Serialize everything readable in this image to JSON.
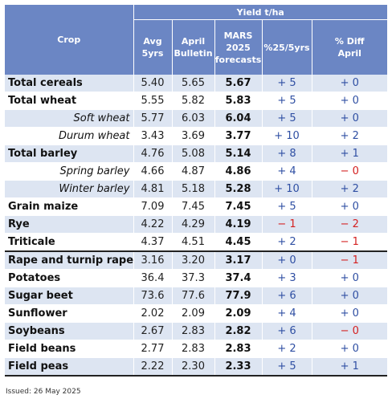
{
  "header": {
    "yield_group": "Yield t/ha",
    "crop": "Crop",
    "avg5": "Avg 5yrs",
    "april": "April\nBulletin",
    "mars": "MARS\n2025\nforecasts",
    "pct25": "%25/5yrs",
    "diff": "% Diff\nApril"
  },
  "rows": [
    {
      "crop": "Total cereals",
      "avg": "5.40",
      "apr": "5.65",
      "mars": "5.67",
      "pct": "+ 5",
      "diff": "+ 0",
      "style": "bold",
      "sep": false,
      "pct_sign": "pos",
      "diff_sign": "pos"
    },
    {
      "crop": "Total wheat",
      "avg": "5.55",
      "apr": "5.82",
      "mars": "5.83",
      "pct": "+ 5",
      "diff": "+ 0",
      "style": "bold",
      "sep": false,
      "pct_sign": "pos",
      "diff_sign": "pos"
    },
    {
      "crop": "Soft wheat",
      "avg": "5.77",
      "apr": "6.03",
      "mars": "6.04",
      "pct": "+ 5",
      "diff": "+ 0",
      "style": "sub",
      "sep": false,
      "pct_sign": "pos",
      "diff_sign": "pos"
    },
    {
      "crop": "Durum wheat",
      "avg": "3.43",
      "apr": "3.69",
      "mars": "3.77",
      "pct": "+ 10",
      "diff": "+ 2",
      "style": "sub",
      "sep": false,
      "pct_sign": "pos",
      "diff_sign": "pos"
    },
    {
      "crop": "Total barley",
      "avg": "4.76",
      "apr": "5.08",
      "mars": "5.14",
      "pct": "+ 8",
      "diff": "+ 1",
      "style": "bold",
      "sep": false,
      "pct_sign": "pos",
      "diff_sign": "pos"
    },
    {
      "crop": "Spring barley",
      "avg": "4.66",
      "apr": "4.87",
      "mars": "4.86",
      "pct": "+ 4",
      "diff": "− 0",
      "style": "sub",
      "sep": false,
      "pct_sign": "pos",
      "diff_sign": "neg"
    },
    {
      "crop": "Winter barley",
      "avg": "4.81",
      "apr": "5.18",
      "mars": "5.28",
      "pct": "+ 10",
      "diff": "+ 2",
      "style": "sub",
      "sep": false,
      "pct_sign": "pos",
      "diff_sign": "pos"
    },
    {
      "crop": "Grain maize",
      "avg": "7.09",
      "apr": "7.45",
      "mars": "7.45",
      "pct": "+ 5",
      "diff": "+ 0",
      "style": "bold",
      "sep": false,
      "pct_sign": "pos",
      "diff_sign": "pos"
    },
    {
      "crop": "Rye",
      "avg": "4.22",
      "apr": "4.29",
      "mars": "4.19",
      "pct": "− 1",
      "diff": "− 2",
      "style": "bold",
      "sep": false,
      "pct_sign": "neg",
      "diff_sign": "neg"
    },
    {
      "crop": "Triticale",
      "avg": "4.37",
      "apr": "4.51",
      "mars": "4.45",
      "pct": "+ 2",
      "diff": "− 1",
      "style": "bold",
      "sep": false,
      "pct_sign": "pos",
      "diff_sign": "neg"
    },
    {
      "crop": "Rape and turnip rape",
      "avg": "3.16",
      "apr": "3.20",
      "mars": "3.17",
      "pct": "+ 0",
      "diff": "− 1",
      "style": "bold",
      "sep": true,
      "pct_sign": "pos",
      "diff_sign": "neg"
    },
    {
      "crop": "Potatoes",
      "avg": "36.4",
      "apr": "37.3",
      "mars": "37.4",
      "pct": "+ 3",
      "diff": "+ 0",
      "style": "bold",
      "sep": false,
      "pct_sign": "pos",
      "diff_sign": "pos"
    },
    {
      "crop": "Sugar beet",
      "avg": "73.6",
      "apr": "77.6",
      "mars": "77.9",
      "pct": "+ 6",
      "diff": "+ 0",
      "style": "bold",
      "sep": false,
      "pct_sign": "pos",
      "diff_sign": "pos"
    },
    {
      "crop": "Sunflower",
      "avg": "2.02",
      "apr": "2.09",
      "mars": "2.09",
      "pct": "+ 4",
      "diff": "+ 0",
      "style": "bold",
      "sep": false,
      "pct_sign": "pos",
      "diff_sign": "pos"
    },
    {
      "crop": "Soybeans",
      "avg": "2.67",
      "apr": "2.83",
      "mars": "2.82",
      "pct": "+ 6",
      "diff": "− 0",
      "style": "bold",
      "sep": false,
      "pct_sign": "pos",
      "diff_sign": "neg"
    },
    {
      "crop": "Field beans",
      "avg": "2.77",
      "apr": "2.83",
      "mars": "2.83",
      "pct": "+ 2",
      "diff": "+ 0",
      "style": "bold",
      "sep": false,
      "pct_sign": "pos",
      "diff_sign": "pos"
    },
    {
      "crop": "Field peas",
      "avg": "2.22",
      "apr": "2.30",
      "mars": "2.33",
      "pct": "+ 5",
      "diff": "+ 1",
      "style": "bold",
      "sep": false,
      "pct_sign": "pos",
      "diff_sign": "pos"
    }
  ],
  "footer": {
    "issued": "Issued: 26 May 2025"
  },
  "colors": {
    "header_bg": "#6b86c4",
    "stripe": "#dde5f2",
    "positive": "#2f4fa3",
    "negative": "#d42020"
  }
}
